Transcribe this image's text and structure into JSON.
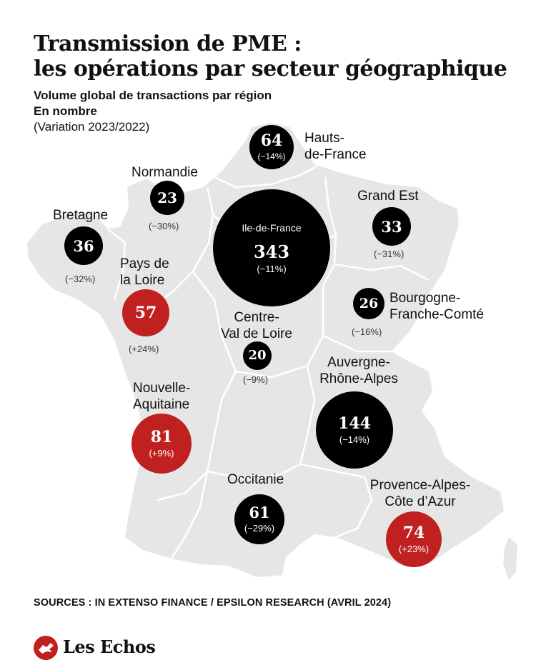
{
  "title": {
    "line1": "Transmission de PME :",
    "line2": "les opérations par secteur géographique"
  },
  "subtitle": {
    "line1": "Volume global de transactions par région",
    "line2": "En nombre",
    "line3": "(Variation 2023/2022)"
  },
  "colors": {
    "increase": "#c0201f",
    "decrease": "#000000",
    "map_fill": "#e6e6e6",
    "map_border": "#ffffff"
  },
  "regions": [
    {
      "key": "hdf",
      "name_lines": [
        "Hauts-",
        "de-France"
      ],
      "value": "64",
      "variation": "(−14%)",
      "trend": "decrease"
    },
    {
      "key": "nor",
      "name_lines": [
        "Normandie"
      ],
      "value": "23",
      "variation": "(−30%)",
      "trend": "decrease"
    },
    {
      "key": "bre",
      "name_lines": [
        "Bretagne"
      ],
      "value": "36",
      "variation": "(−32%)",
      "trend": "decrease"
    },
    {
      "key": "idf",
      "name_lines": [
        "Ile-de-France"
      ],
      "value": "343",
      "variation": "(−11%)",
      "trend": "decrease"
    },
    {
      "key": "ges",
      "name_lines": [
        "Grand Est"
      ],
      "value": "33",
      "variation": "(−31%)",
      "trend": "decrease"
    },
    {
      "key": "pdl",
      "name_lines": [
        "Pays de",
        "la Loire"
      ],
      "value": "57",
      "variation": "(+24%)",
      "trend": "increase"
    },
    {
      "key": "bfc",
      "name_lines": [
        "Bourgogne-",
        "Franche-Comté"
      ],
      "value": "26",
      "variation": "(−16%)",
      "trend": "decrease"
    },
    {
      "key": "cvl",
      "name_lines": [
        "Centre-",
        "Val de Loire"
      ],
      "value": "20",
      "variation": "(−9%)",
      "trend": "decrease"
    },
    {
      "key": "naq",
      "name_lines": [
        "Nouvelle-",
        "Aquitaine"
      ],
      "value": "81",
      "variation": "(+9%)",
      "trend": "increase"
    },
    {
      "key": "ara",
      "name_lines": [
        "Auvergne-",
        "Rhône-Alpes"
      ],
      "value": "144",
      "variation": "(−14%)",
      "trend": "decrease"
    },
    {
      "key": "occ",
      "name_lines": [
        "Occitanie"
      ],
      "value": "61",
      "variation": "(−29%)",
      "trend": "decrease"
    },
    {
      "key": "pac",
      "name_lines": [
        "Provence-Alpes-",
        "Côte d’Azur"
      ],
      "value": "74",
      "variation": "(+23%)",
      "trend": "increase"
    }
  ],
  "sources": "SOURCES : IN EXTENSO FINANCE / EPSILON RESEARCH (AVRIL 2024)",
  "logo": {
    "text": "Les Echos",
    "icon": "les-echos-logo-icon"
  }
}
